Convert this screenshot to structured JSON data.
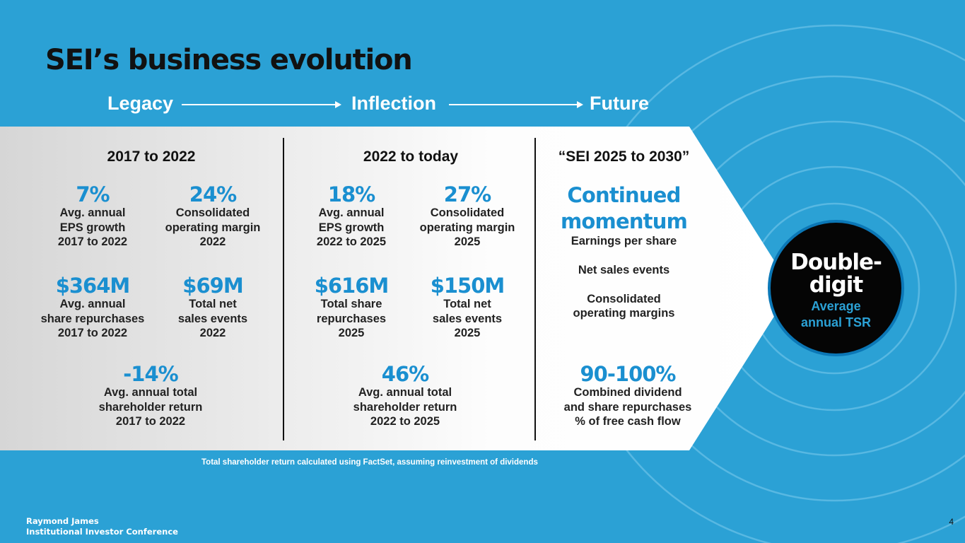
{
  "title": "SEI’s business evolution",
  "phases": {
    "legacy": "Legacy",
    "inflection": "Inflection",
    "future": "Future"
  },
  "legacy": {
    "period": "2017 to 2022",
    "eps": {
      "value": "7%",
      "label": [
        "Avg. annual",
        "EPS growth",
        "2017 to 2022"
      ]
    },
    "margin": {
      "value": "24%",
      "label": [
        "Consolidated",
        "operating margin",
        "2022"
      ]
    },
    "repurchases": {
      "value": "$364M",
      "label": [
        "Avg. annual",
        "share repurchases",
        "2017 to 2022"
      ]
    },
    "sales": {
      "value": "$69M",
      "label": [
        "Total net",
        "sales events",
        "2022"
      ]
    },
    "tsr": {
      "value": "-14%",
      "label": [
        "Avg. annual total",
        "shareholder return",
        "2017 to 2022"
      ]
    }
  },
  "inflection": {
    "period": "2022 to today",
    "eps": {
      "value": "18%",
      "label": [
        "Avg. annual",
        "EPS growth",
        "2022 to 2025"
      ]
    },
    "margin": {
      "value": "27%",
      "label": [
        "Consolidated",
        "operating margin",
        "2025"
      ]
    },
    "repurchases": {
      "value": "$616M",
      "label": [
        "Total share",
        "repurchases",
        "2025"
      ]
    },
    "sales": {
      "value": "$150M",
      "label": [
        "Total net",
        "sales events",
        "2025"
      ]
    },
    "tsr": {
      "value": "46%",
      "label": [
        "Avg. annual total",
        "shareholder return",
        "2022 to 2025"
      ]
    }
  },
  "future": {
    "period": "“SEI 2025 to 2030”",
    "headline": [
      "Continued",
      "momentum"
    ],
    "items": [
      "Earnings per share",
      "Net sales events",
      "Consolidated",
      "operating margins"
    ],
    "payout": {
      "value": "90-100%",
      "label": [
        "Combined dividend",
        "and share repurchases",
        "% of free cash flow"
      ]
    }
  },
  "tsr_circle": {
    "big": [
      "Double-",
      "digit"
    ],
    "small": [
      "Average",
      "annual TSR"
    ]
  },
  "footnote": "Total shareholder return calculated using FactSet, assuming reinvestment of dividends",
  "brand": [
    "Raymond James",
    "Institutional Investor Conference"
  ],
  "page_number": "4",
  "colors": {
    "background": "#2ba1d5",
    "accent": "#1a8fd0",
    "panel": "#e6e6e6",
    "dark": "#111111"
  }
}
